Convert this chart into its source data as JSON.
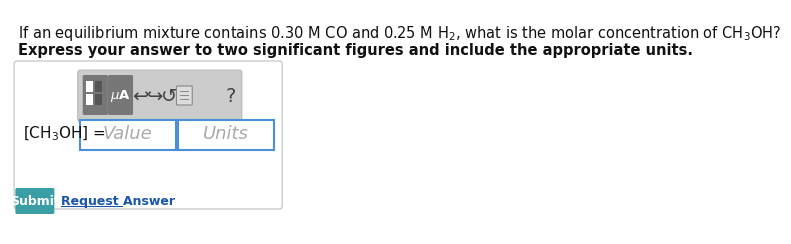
{
  "line1": "If an equilibrium mixture contains 0.30 M CO and 0.25 M H$_2$, what is the molar concentration of CH$_3$OH?",
  "line2": "Express your answer to two significant figures and include the appropriate units.",
  "label": "[CH$_3$OH] =",
  "placeholder_value": "Value",
  "placeholder_units": "Units",
  "submit_text": "Submit",
  "request_text": "Request Answer",
  "bg_color": "#ffffff",
  "toolbar_bg": "#cccccc",
  "icon_bg": "#888888",
  "submit_bg": "#3a9ea5",
  "submit_fg": "#ffffff",
  "border_color": "#cccccc",
  "input_border": "#4a90d9",
  "text_color": "#111111",
  "placeholder_color": "#aaaaaa",
  "request_color": "#1a55aa"
}
